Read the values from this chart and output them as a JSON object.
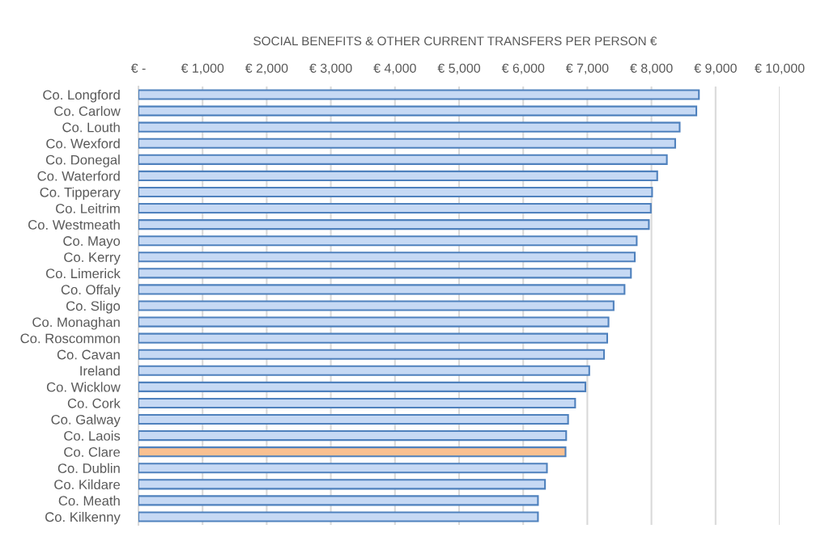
{
  "chart_data": {
    "type": "bar",
    "orientation": "horizontal",
    "title": "SOCIAL BENEFITS & OTHER CURRENT TRANSFERS PER PERSON €",
    "categories": [
      "Co. Longford",
      "Co. Carlow",
      "Co. Louth",
      "Co. Wexford",
      "Co. Donegal",
      "Co. Waterford",
      "Co. Tipperary",
      "Co. Leitrim",
      "Co. Westmeath",
      "Co. Mayo",
      "Co. Kerry",
      "Co. Limerick",
      "Co. Offaly",
      "Co. Sligo",
      "Co. Monaghan",
      "Co. Roscommon",
      "Co. Cavan",
      "Ireland",
      "Co. Wicklow",
      "Co. Cork",
      "Co. Galway",
      "Co. Laois",
      "Co. Clare",
      "Co. Dublin",
      "Co. Kildare",
      "Co. Meath",
      "Co. Kilkenny"
    ],
    "values": [
      8740,
      8700,
      8440,
      8370,
      8240,
      8090,
      8010,
      7990,
      7960,
      7770,
      7740,
      7680,
      7580,
      7410,
      7330,
      7310,
      7260,
      7030,
      6970,
      6810,
      6700,
      6670,
      6660,
      6370,
      6340,
      6230,
      6230
    ],
    "colors": [
      "#c6d9f4",
      "#c6d9f4",
      "#c6d9f4",
      "#c6d9f4",
      "#c6d9f4",
      "#c6d9f4",
      "#c6d9f4",
      "#c6d9f4",
      "#c6d9f4",
      "#c6d9f4",
      "#c6d9f4",
      "#c6d9f4",
      "#c6d9f4",
      "#c6d9f4",
      "#c6d9f4",
      "#c6d9f4",
      "#c6d9f4",
      "#c6d9f4",
      "#c6d9f4",
      "#c6d9f4",
      "#c6d9f4",
      "#c6d9f4",
      "#fac090",
      "#c6d9f4",
      "#c6d9f4",
      "#c6d9f4",
      "#c6d9f4"
    ],
    "xlim": [
      0,
      10000
    ],
    "xticks": [
      {
        "value": 0,
        "label": "€ -"
      },
      {
        "value": 1000,
        "label": "€ 1,000"
      },
      {
        "value": 2000,
        "label": "€ 2,000"
      },
      {
        "value": 3000,
        "label": "€ 3,000"
      },
      {
        "value": 4000,
        "label": "€ 4,000"
      },
      {
        "value": 5000,
        "label": "€ 5,000"
      },
      {
        "value": 6000,
        "label": "€ 6,000"
      },
      {
        "value": 7000,
        "label": "€ 7,000"
      },
      {
        "value": 8000,
        "label": "€ 8,000"
      },
      {
        "value": 9000,
        "label": "€ 9,000"
      },
      {
        "value": 10000,
        "label": "€ 10,000"
      }
    ],
    "grid": "x"
  }
}
